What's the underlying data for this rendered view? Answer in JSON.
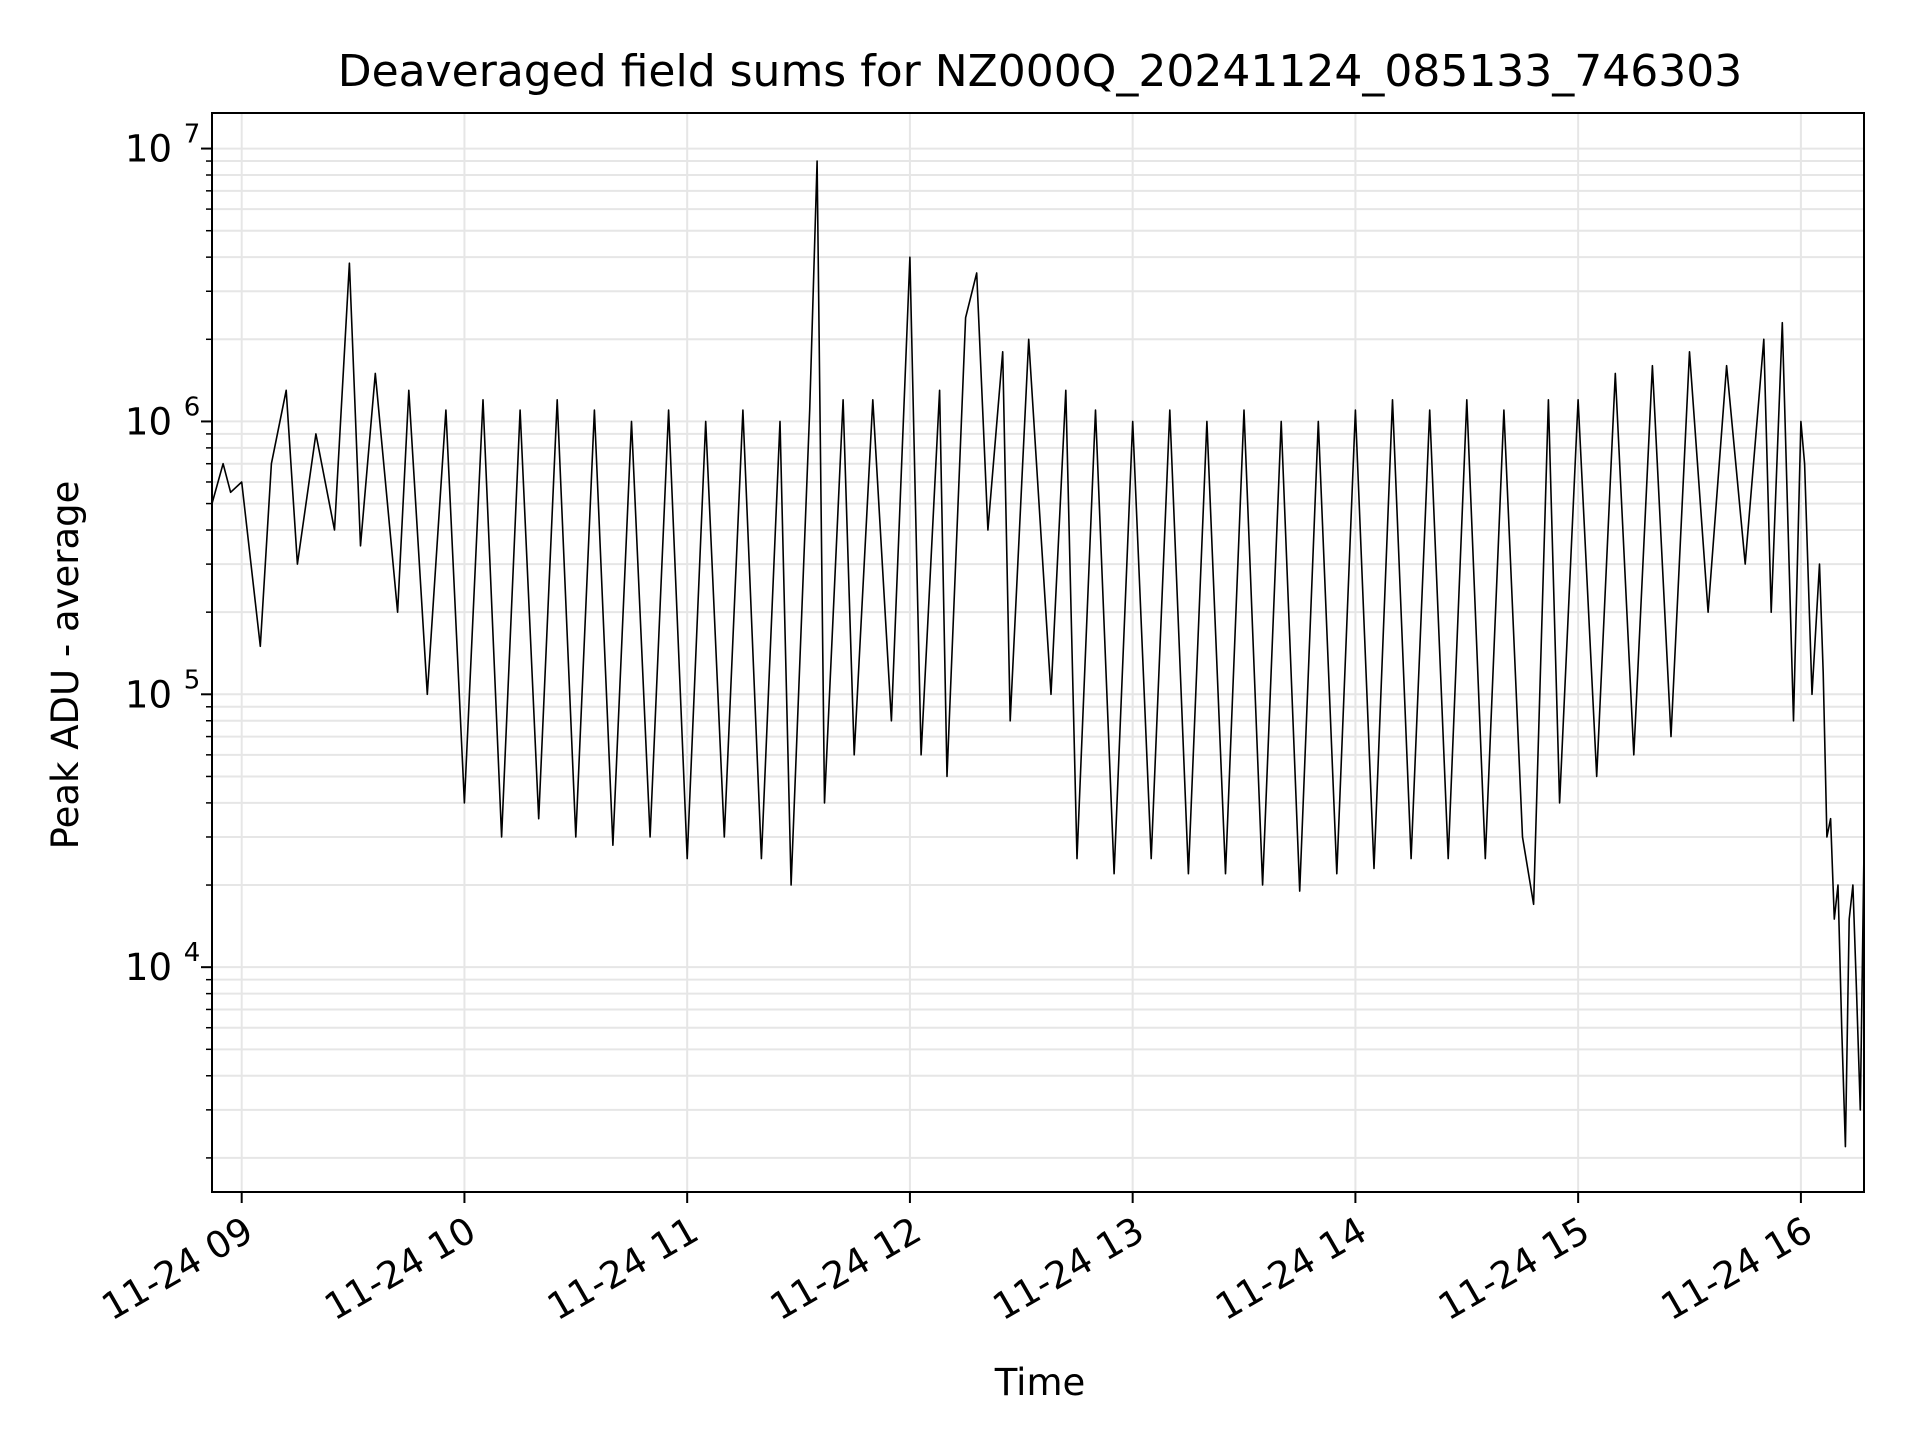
{
  "chart_data": {
    "type": "line",
    "title": "Deaveraged field sums for NZ000Q_20241124_085133_746303",
    "xlabel": "Time",
    "ylabel": "Peak ADU - average",
    "yscale": "log",
    "ylim": [
      1500,
      13500000
    ],
    "xlim": [
      "2024-11-24 08:52",
      "2024-11-24 16:17"
    ],
    "grid": true,
    "line_color": "#000000",
    "grid_color": "#e6e6e6",
    "x_ticks": [
      {
        "t": "2024-11-24 09:00",
        "label": "11-24 09"
      },
      {
        "t": "2024-11-24 10:00",
        "label": "11-24 10"
      },
      {
        "t": "2024-11-24 11:00",
        "label": "11-24 11"
      },
      {
        "t": "2024-11-24 12:00",
        "label": "11-24 12"
      },
      {
        "t": "2024-11-24 13:00",
        "label": "11-24 13"
      },
      {
        "t": "2024-11-24 14:00",
        "label": "11-24 14"
      },
      {
        "t": "2024-11-24 15:00",
        "label": "11-24 15"
      },
      {
        "t": "2024-11-24 16:00",
        "label": "11-24 16"
      }
    ],
    "y_ticks": [
      {
        "value": 10000,
        "base": "10",
        "exp": "4"
      },
      {
        "value": 100000,
        "base": "10",
        "exp": "5"
      },
      {
        "value": 1000000,
        "base": "10",
        "exp": "6"
      },
      {
        "value": 10000000,
        "base": "10",
        "exp": "7"
      }
    ],
    "series": [
      {
        "points": [
          [
            "2024-11-24 08:52",
            500000
          ],
          [
            "2024-11-24 08:55",
            700000
          ],
          [
            "2024-11-24 08:57",
            550000
          ],
          [
            "2024-11-24 09:00",
            600000
          ],
          [
            "2024-11-24 09:05",
            150000
          ],
          [
            "2024-11-24 09:08",
            700000
          ],
          [
            "2024-11-24 09:12",
            1300000
          ],
          [
            "2024-11-24 09:15",
            300000
          ],
          [
            "2024-11-24 09:20",
            900000
          ],
          [
            "2024-11-24 09:25",
            400000
          ],
          [
            "2024-11-24 09:29",
            3800000
          ],
          [
            "2024-11-24 09:32",
            350000
          ],
          [
            "2024-11-24 09:36",
            1500000
          ],
          [
            "2024-11-24 09:42",
            200000
          ],
          [
            "2024-11-24 09:45",
            1300000
          ],
          [
            "2024-11-24 09:50",
            100000
          ],
          [
            "2024-11-24 09:55",
            1100000
          ],
          [
            "2024-11-24 10:00",
            40000
          ],
          [
            "2024-11-24 10:05",
            1200000
          ],
          [
            "2024-11-24 10:10",
            30000
          ],
          [
            "2024-11-24 10:15",
            1100000
          ],
          [
            "2024-11-24 10:20",
            35000
          ],
          [
            "2024-11-24 10:25",
            1200000
          ],
          [
            "2024-11-24 10:30",
            30000
          ],
          [
            "2024-11-24 10:35",
            1100000
          ],
          [
            "2024-11-24 10:40",
            28000
          ],
          [
            "2024-11-24 10:45",
            1000000
          ],
          [
            "2024-11-24 10:50",
            30000
          ],
          [
            "2024-11-24 10:55",
            1100000
          ],
          [
            "2024-11-24 11:00",
            25000
          ],
          [
            "2024-11-24 11:05",
            1000000
          ],
          [
            "2024-11-24 11:10",
            30000
          ],
          [
            "2024-11-24 11:15",
            1100000
          ],
          [
            "2024-11-24 11:20",
            25000
          ],
          [
            "2024-11-24 11:25",
            1000000
          ],
          [
            "2024-11-24 11:28",
            20000
          ],
          [
            "2024-11-24 11:33",
            1100000
          ],
          [
            "2024-11-24 11:35",
            9000000
          ],
          [
            "2024-11-24 11:37",
            40000
          ],
          [
            "2024-11-24 11:42",
            1200000
          ],
          [
            "2024-11-24 11:45",
            60000
          ],
          [
            "2024-11-24 11:50",
            1200000
          ],
          [
            "2024-11-24 11:55",
            80000
          ],
          [
            "2024-11-24 12:00",
            4000000
          ],
          [
            "2024-11-24 12:03",
            60000
          ],
          [
            "2024-11-24 12:08",
            1300000
          ],
          [
            "2024-11-24 12:10",
            50000
          ],
          [
            "2024-11-24 12:15",
            2400000
          ],
          [
            "2024-11-24 12:18",
            3500000
          ],
          [
            "2024-11-24 12:21",
            400000
          ],
          [
            "2024-11-24 12:25",
            1800000
          ],
          [
            "2024-11-24 12:27",
            80000
          ],
          [
            "2024-11-24 12:32",
            2000000
          ],
          [
            "2024-11-24 12:38",
            100000
          ],
          [
            "2024-11-24 12:42",
            1300000
          ],
          [
            "2024-11-24 12:45",
            25000
          ],
          [
            "2024-11-24 12:50",
            1100000
          ],
          [
            "2024-11-24 12:55",
            22000
          ],
          [
            "2024-11-24 13:00",
            1000000
          ],
          [
            "2024-11-24 13:05",
            25000
          ],
          [
            "2024-11-24 13:10",
            1100000
          ],
          [
            "2024-11-24 13:15",
            22000
          ],
          [
            "2024-11-24 13:20",
            1000000
          ],
          [
            "2024-11-24 13:25",
            22000
          ],
          [
            "2024-11-24 13:30",
            1100000
          ],
          [
            "2024-11-24 13:35",
            20000
          ],
          [
            "2024-11-24 13:40",
            1000000
          ],
          [
            "2024-11-24 13:45",
            19000
          ],
          [
            "2024-11-24 13:50",
            1000000
          ],
          [
            "2024-11-24 13:55",
            22000
          ],
          [
            "2024-11-24 14:00",
            1100000
          ],
          [
            "2024-11-24 14:05",
            23000
          ],
          [
            "2024-11-24 14:10",
            1200000
          ],
          [
            "2024-11-24 14:15",
            25000
          ],
          [
            "2024-11-24 14:20",
            1100000
          ],
          [
            "2024-11-24 14:25",
            25000
          ],
          [
            "2024-11-24 14:30",
            1200000
          ],
          [
            "2024-11-24 14:35",
            25000
          ],
          [
            "2024-11-24 14:40",
            1100000
          ],
          [
            "2024-11-24 14:45",
            30000
          ],
          [
            "2024-11-24 14:48",
            17000
          ],
          [
            "2024-11-24 14:52",
            1200000
          ],
          [
            "2024-11-24 14:55",
            40000
          ],
          [
            "2024-11-24 15:00",
            1200000
          ],
          [
            "2024-11-24 15:05",
            50000
          ],
          [
            "2024-11-24 15:10",
            1500000
          ],
          [
            "2024-11-24 15:15",
            60000
          ],
          [
            "2024-11-24 15:20",
            1600000
          ],
          [
            "2024-11-24 15:25",
            70000
          ],
          [
            "2024-11-24 15:30",
            1800000
          ],
          [
            "2024-11-24 15:35",
            200000
          ],
          [
            "2024-11-24 15:40",
            1600000
          ],
          [
            "2024-11-24 15:45",
            300000
          ],
          [
            "2024-11-24 15:50",
            2000000
          ],
          [
            "2024-11-24 15:52",
            200000
          ],
          [
            "2024-11-24 15:55",
            2300000
          ],
          [
            "2024-11-24 15:58",
            80000
          ],
          [
            "2024-11-24 16:00",
            1000000
          ],
          [
            "2024-11-24 16:01",
            700000
          ],
          [
            "2024-11-24 16:03",
            100000
          ],
          [
            "2024-11-24 16:05",
            300000
          ],
          [
            "2024-11-24 16:06",
            120000
          ],
          [
            "2024-11-24 16:07",
            30000
          ],
          [
            "2024-11-24 16:08",
            35000
          ],
          [
            "2024-11-24 16:09",
            15000
          ],
          [
            "2024-11-24 16:10",
            20000
          ],
          [
            "2024-11-24 16:11",
            6000
          ],
          [
            "2024-11-24 16:12",
            2200
          ],
          [
            "2024-11-24 16:13",
            15000
          ],
          [
            "2024-11-24 16:14",
            20000
          ],
          [
            "2024-11-24 16:15",
            8000
          ],
          [
            "2024-11-24 16:16",
            3000
          ],
          [
            "2024-11-24 16:17",
            27000
          ]
        ]
      }
    ]
  }
}
